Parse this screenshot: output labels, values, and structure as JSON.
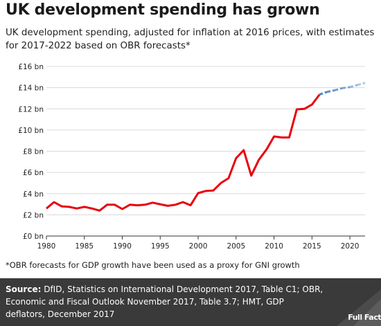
{
  "header": {
    "title": "UK development spending has grown",
    "subtitle": "UK development spending, adjusted for inflation at 2016 prices, with estimates for 2017-2022 based on OBR forecasts*"
  },
  "chart_data": {
    "type": "line",
    "title": "UK development spending has grown",
    "xlabel": "",
    "ylabel": "",
    "xlim": [
      1980,
      2022
    ],
    "ylim": [
      0,
      16
    ],
    "x_ticks": [
      "1980",
      "1985",
      "1990",
      "1995",
      "2000",
      "2005",
      "2010",
      "2015",
      "2020"
    ],
    "y_ticks": [
      "£0 bn",
      "£2 bn",
      "£4 bn",
      "£6 bn",
      "£8 bn",
      "£10 bn",
      "£12 bn",
      "£14 bn",
      "£16 bn"
    ],
    "grid": "horizontal",
    "series": [
      {
        "color": "#e8000b",
        "style": "solid",
        "x": [
          1980,
          1981,
          1982,
          1983,
          1984,
          1985,
          1986,
          1987,
          1988,
          1989,
          1990,
          1991,
          1992,
          1993,
          1994,
          1995,
          1996,
          1997,
          1998,
          1999,
          2000,
          2001,
          2002,
          2003,
          2004,
          2005,
          2006,
          2007,
          2008,
          2009,
          2010,
          2011,
          2012,
          2013,
          2014,
          2015,
          2016
        ],
        "y": [
          2.6,
          3.2,
          2.8,
          2.75,
          2.6,
          2.75,
          2.6,
          2.4,
          2.95,
          2.95,
          2.55,
          2.95,
          2.9,
          2.95,
          3.15,
          3.0,
          2.85,
          2.95,
          3.2,
          2.9,
          4.05,
          4.25,
          4.3,
          5.0,
          5.45,
          7.35,
          8.1,
          5.7,
          7.2,
          8.15,
          9.4,
          9.3,
          9.3,
          11.95,
          12.0,
          12.4,
          13.35
        ]
      },
      {
        "color": "#4a86c5",
        "style": "dashed",
        "x": [
          2016,
          2017,
          2018,
          2019,
          2020,
          2021,
          2022
        ],
        "y": [
          13.35,
          13.6,
          13.75,
          13.95,
          14.05,
          14.25,
          14.45
        ]
      }
    ]
  },
  "footnote": "*OBR forecasts for GDP growth have been used as a proxy for GNI growth",
  "source": {
    "label": "Source:",
    "text": " DfID, Statistics on International Development 2017, Table C1; OBR, Economic and Fiscal Outlook November 2017, Table 3.7; HMT, GDP deflators, December 2017"
  },
  "logo": {
    "text": "Full Fact"
  }
}
